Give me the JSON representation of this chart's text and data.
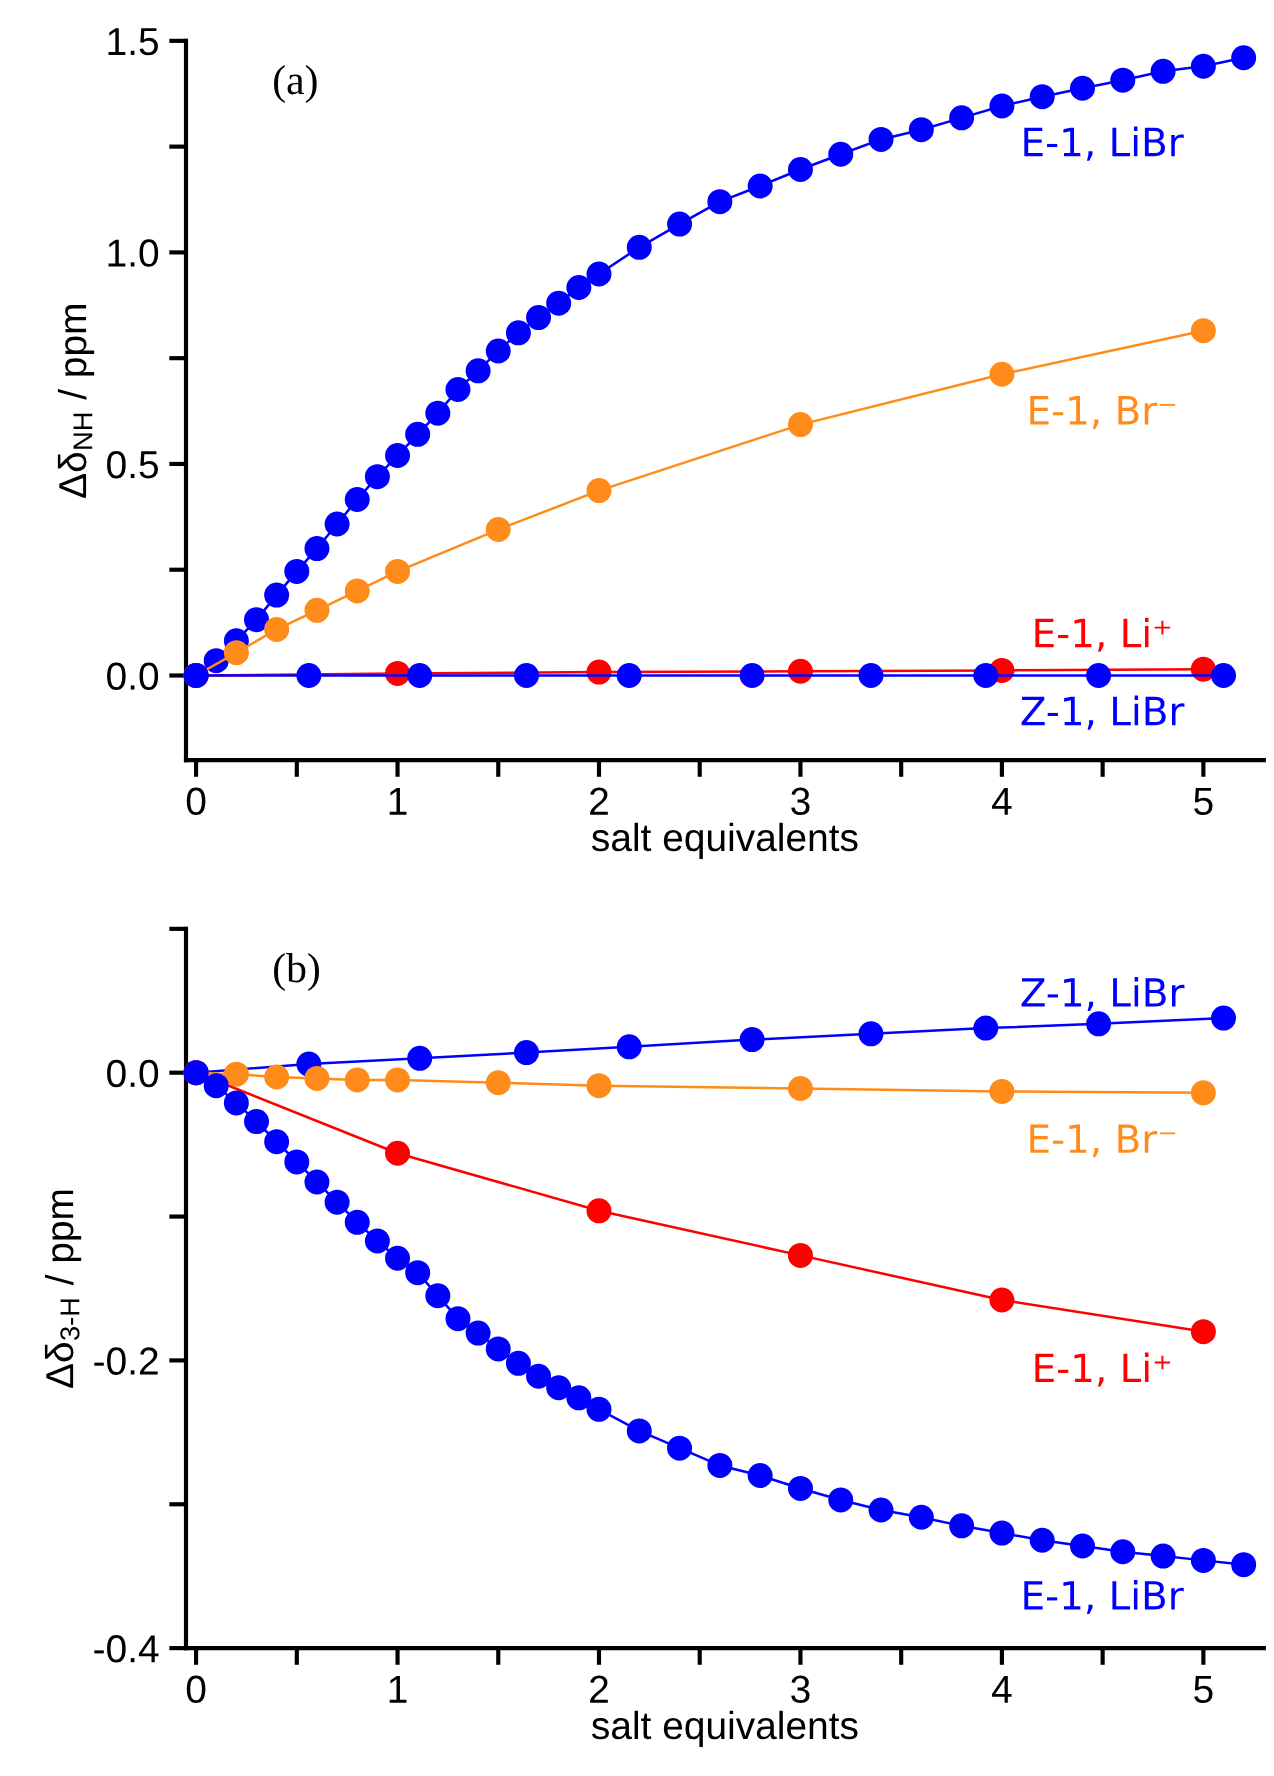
{
  "chart_data": [
    {
      "type": "line",
      "title": "(a)",
      "xlabel": "salt equivalents",
      "ylabel": "Δδ$_{NH}$ / ppm",
      "xlim": [
        -0.05,
        5.3
      ],
      "ylim": [
        -0.2,
        1.5
      ],
      "xticks": [
        0,
        {
          "value": 0.5,
          "label": null
        },
        1,
        {
          "value": 1.5,
          "label": null
        },
        2,
        {
          "value": 2.5,
          "label": null
        },
        3,
        {
          "value": 3.5,
          "label": null
        },
        4,
        {
          "value": 4.5,
          "label": null
        },
        5
      ],
      "yticks": [
        {
          "value": 0,
          "label": "0.0"
        },
        {
          "value": 0.25,
          "label": null
        },
        0.5,
        {
          "value": 0.75,
          "label": null
        },
        {
          "value": 1,
          "label": "1.0"
        },
        {
          "value": 1.25,
          "label": null
        },
        1.5
      ],
      "grid": false,
      "legend": false,
      "marker": "circle",
      "line_style": "solid",
      "series": [
        {
          "name": "E-1, LiBr",
          "color": "#0000ff",
          "x": [
            0,
            0.1,
            0.2,
            0.3,
            0.4,
            0.5,
            0.6,
            0.7,
            0.8,
            0.9,
            1.0,
            1.1,
            1.2,
            1.3,
            1.4,
            1.5,
            1.6,
            1.7,
            1.8,
            1.9,
            2.0,
            2.2,
            2.4,
            2.6,
            2.8,
            3.0,
            3.2,
            3.4,
            3.6,
            3.8,
            4.0,
            4.2,
            4.4,
            4.6,
            4.8,
            5.0,
            5.2
          ],
          "values": [
            0,
            0.035,
            0.082,
            0.132,
            0.19,
            0.246,
            0.3,
            0.358,
            0.416,
            0.47,
            0.52,
            0.57,
            0.62,
            0.676,
            0.72,
            0.767,
            0.81,
            0.846,
            0.88,
            0.917,
            0.949,
            1.012,
            1.067,
            1.12,
            1.157,
            1.196,
            1.232,
            1.267,
            1.29,
            1.318,
            1.346,
            1.368,
            1.388,
            1.407,
            1.428,
            1.44,
            1.46
          ]
        },
        {
          "name": "E-1, Br⁻",
          "color": "#ff8c1a",
          "x": [
            0,
            0.2,
            0.4,
            0.6,
            0.8,
            1.0,
            1.5,
            2.0,
            3.0,
            4.0,
            5.0
          ],
          "values": [
            0,
            0.054,
            0.109,
            0.154,
            0.2,
            0.246,
            0.345,
            0.437,
            0.593,
            0.712,
            0.815
          ]
        },
        {
          "name": "E-1, Li⁺",
          "color": "#ff0000",
          "x": [
            0,
            1,
            2,
            3,
            4,
            5
          ],
          "values": [
            0,
            0.005,
            0.008,
            0.01,
            0.012,
            0.015
          ]
        },
        {
          "name": "Z-1, LiBr",
          "color": "#0000ff",
          "x": [
            0,
            0.56,
            1.11,
            1.64,
            2.15,
            2.76,
            3.35,
            3.92,
            4.48,
            5.1
          ],
          "values": [
            0,
            0,
            0,
            0,
            0,
            0,
            0,
            0,
            0,
            0
          ]
        }
      ]
    },
    {
      "type": "line",
      "title": "(b)",
      "xlabel": "salt equivalents",
      "ylabel": "Δδ$_{3-H}$ / ppm",
      "xlim": [
        -0.05,
        5.3
      ],
      "ylim": [
        -0.4,
        0.1
      ],
      "xticks": [
        0,
        {
          "value": 0.5,
          "label": null
        },
        1,
        {
          "value": 1.5,
          "label": null
        },
        2,
        {
          "value": 2.5,
          "label": null
        },
        3,
        {
          "value": 3.5,
          "label": null
        },
        4,
        {
          "value": 4.5,
          "label": null
        },
        5
      ],
      "yticks": [
        -0.4,
        {
          "value": -0.3,
          "label": null
        },
        -0.2,
        {
          "value": -0.1,
          "label": null
        },
        {
          "value": 0,
          "label": "0.0"
        },
        {
          "value": 0.1,
          "label": null
        }
      ],
      "grid": false,
      "legend": false,
      "marker": "circle",
      "line_style": "solid",
      "series": [
        {
          "name": "Z-1, LiBr",
          "color": "#0000ff",
          "x": [
            0,
            0.56,
            1.11,
            1.64,
            2.15,
            2.76,
            3.35,
            3.92,
            4.48,
            5.1
          ],
          "values": [
            0,
            0.006,
            0.01,
            0.014,
            0.018,
            0.023,
            0.027,
            0.031,
            0.034,
            0.038
          ]
        },
        {
          "name": "E-1, Br⁻",
          "color": "#ff8c1a",
          "x": [
            0,
            0.2,
            0.4,
            0.6,
            0.8,
            1.0,
            1.5,
            2.0,
            3.0,
            4.0,
            5.0
          ],
          "values": [
            0,
            -0.001,
            -0.003,
            -0.004,
            -0.005,
            -0.005,
            -0.007,
            -0.009,
            -0.011,
            -0.013,
            -0.014
          ]
        },
        {
          "name": "E-1, Li⁺",
          "color": "#ff0000",
          "x": [
            0,
            1,
            2,
            3,
            4,
            5
          ],
          "values": [
            0,
            -0.056,
            -0.096,
            -0.127,
            -0.158,
            -0.18
          ]
        },
        {
          "name": "E-1, LiBr",
          "color": "#0000ff",
          "x": [
            0,
            0.1,
            0.2,
            0.3,
            0.4,
            0.5,
            0.6,
            0.7,
            0.8,
            0.9,
            1.0,
            1.1,
            1.2,
            1.3,
            1.4,
            1.5,
            1.6,
            1.7,
            1.8,
            1.9,
            2.0,
            2.2,
            2.4,
            2.6,
            2.8,
            3.0,
            3.2,
            3.4,
            3.6,
            3.8,
            4.0,
            4.2,
            4.4,
            4.6,
            4.8,
            5.0,
            5.2
          ],
          "values": [
            0,
            -0.009,
            -0.021,
            -0.034,
            -0.048,
            -0.062,
            -0.076,
            -0.09,
            -0.104,
            -0.117,
            -0.129,
            -0.139,
            -0.155,
            -0.171,
            -0.181,
            -0.192,
            -0.202,
            -0.211,
            -0.219,
            -0.226,
            -0.234,
            -0.249,
            -0.261,
            -0.273,
            -0.28,
            -0.289,
            -0.297,
            -0.304,
            -0.309,
            -0.315,
            -0.32,
            -0.325,
            -0.329,
            -0.333,
            -0.336,
            -0.339,
            -0.342
          ]
        }
      ]
    }
  ]
}
